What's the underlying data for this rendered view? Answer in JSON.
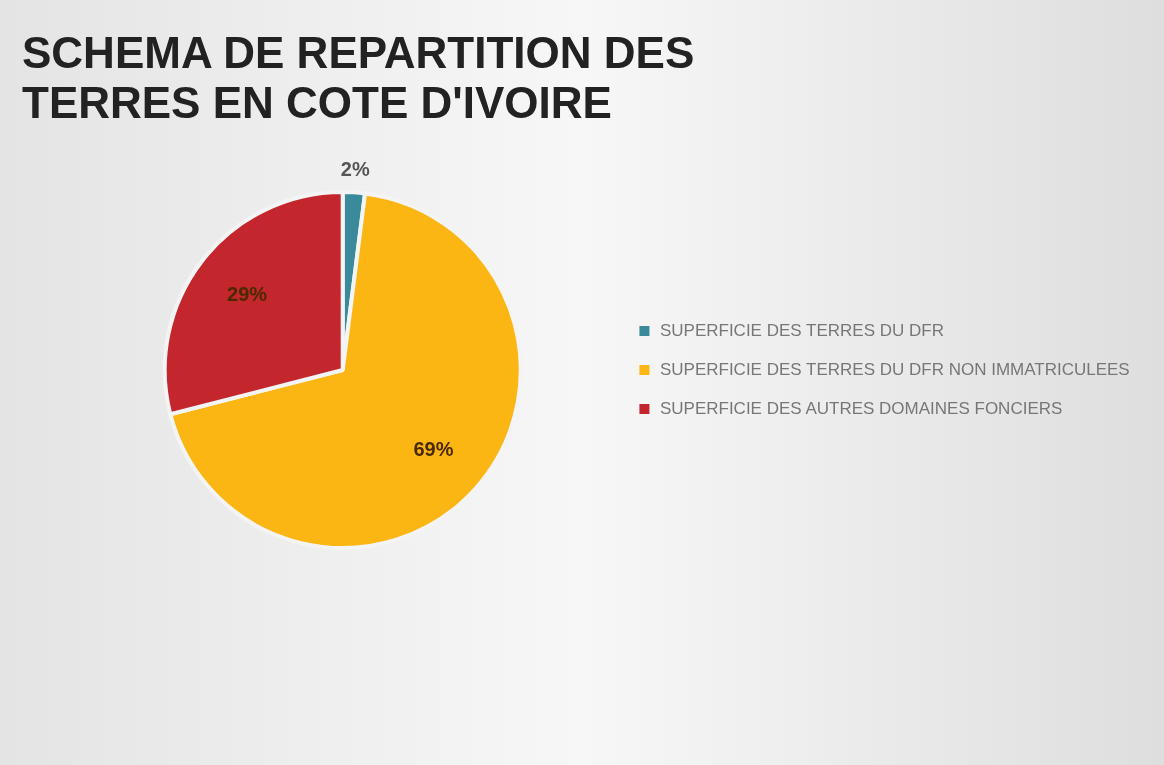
{
  "chart_data": {
    "type": "pie",
    "title": "SCHEMA DE REPARTITION DES TERRES EN COTE D'IVOIRE",
    "categories": [
      "SUPERFICIE DES TERRES DU DFR",
      "SUPERFICIE DES TERRES DU DFR NON IMMATRICULEES",
      "SUPERFICIE DES AUTRES DOMAINES FONCIERS"
    ],
    "values": [
      2,
      69,
      29
    ],
    "value_labels": [
      "2%",
      "69%",
      "29%"
    ],
    "colors": [
      "#3a8a9c",
      "#fbb613",
      "#c3262c"
    ],
    "legend": "right"
  }
}
